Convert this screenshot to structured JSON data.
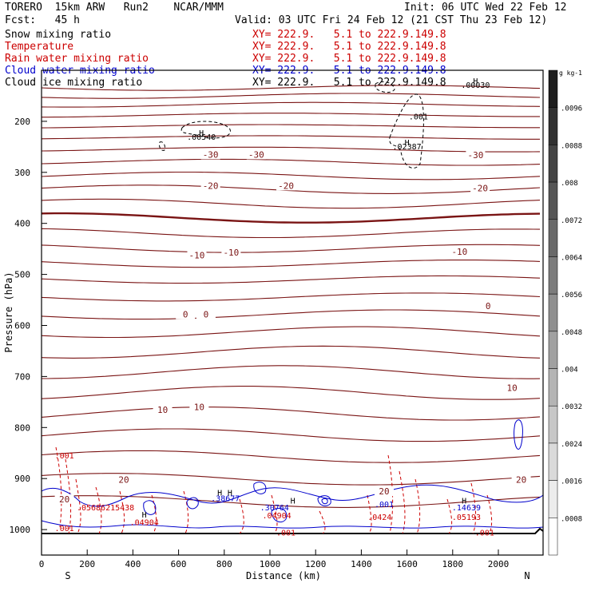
{
  "header": {
    "model": "TORERO  15km ARW   Run2    NCAR/MMM",
    "init": "Init: 06 UTC Wed 22 Feb 12",
    "fcst": "Fcst:   45 h",
    "valid": "Valid: 03 UTC Fri 24 Feb 12 (21 CST Thu 23 Feb 12)"
  },
  "legend": [
    {
      "label": "Snow mixing ratio",
      "xy": "XY= 222.9.   5.1 to 222.9.149.8",
      "color": "#000000"
    },
    {
      "label": "Temperature",
      "xy": "XY= 222.9.   5.1 to 222.9.149.8",
      "color": "#cc0000"
    },
    {
      "label": "Rain water mixing ratio",
      "xy": "XY= 222.9.   5.1 to 222.9.149.8",
      "color": "#cc0000"
    },
    {
      "label": "Cloud water mixing ratio",
      "xy": "XY= 222.9.   5.1 to 222.9.149.8",
      "color": "#0000cc"
    },
    {
      "label": "Cloud ice mixing ratio",
      "xy": "XY= 222.9.   5.1 to 222.9.149.8",
      "color": "#000000"
    }
  ],
  "chart_data": {
    "type": "cross-section",
    "xlabel": "Distance (km)",
    "ylabel": "Pressure (hPa)",
    "xlim": [
      0,
      2180
    ],
    "ylim": [
      1050,
      100
    ],
    "x_ticks": [
      0,
      200,
      400,
      600,
      800,
      1000,
      1200,
      1400,
      1600,
      1800,
      2000
    ],
    "y_ticks": [
      200,
      300,
      400,
      500,
      600,
      700,
      800,
      900,
      1000
    ],
    "endpoints": {
      "left": "S",
      "right": "N"
    },
    "temperature_labels": [
      {
        "text": "-30",
        "x": 740,
        "p": 265
      },
      {
        "text": "-30",
        "x": 940,
        "p": 265
      },
      {
        "text": "-30",
        "x": 1900,
        "p": 266
      },
      {
        "text": "-20",
        "x": 740,
        "p": 326
      },
      {
        "text": "-20",
        "x": 1070,
        "p": 326
      },
      {
        "text": "-20",
        "x": 1920,
        "p": 331
      },
      {
        "text": "-10",
        "x": 680,
        "p": 462
      },
      {
        "text": "-10",
        "x": 830,
        "p": 457
      },
      {
        "text": "-10",
        "x": 1830,
        "p": 455
      },
      {
        "text": "0",
        "x": 630,
        "p": 578
      },
      {
        "text": "0",
        "x": 720,
        "p": 578
      },
      {
        "text": "0",
        "x": 1955,
        "p": 562
      },
      {
        "text": "10",
        "x": 530,
        "p": 765
      },
      {
        "text": "10",
        "x": 690,
        "p": 760
      },
      {
        "text": "10",
        "x": 2060,
        "p": 722
      },
      {
        "text": "20",
        "x": 360,
        "p": 902
      },
      {
        "text": "20",
        "x": 2100,
        "p": 902
      },
      {
        "text": "20",
        "x": 1500,
        "p": 925
      },
      {
        "text": "20",
        "x": 100,
        "p": 940
      }
    ],
    "maxima_labels": [
      {
        "text": ".00540",
        "x": 700,
        "p": 230,
        "color": "#000000"
      },
      {
        "text": ".02387",
        "x": 1600,
        "p": 249,
        "color": "#000000"
      },
      {
        "text": ".00030",
        "x": 1900,
        "p": 128,
        "color": "#000000"
      },
      {
        "text": ".001",
        "x": 1650,
        "p": 190,
        "color": "#000000"
      },
      {
        "text": ".001",
        "x": 100,
        "p": 854,
        "color": "#cc0000"
      },
      {
        "text": ".001",
        "x": 100,
        "p": 997,
        "color": "#cc0000"
      },
      {
        "text": ".05686215438",
        "x": 280,
        "p": 956,
        "color": "#cc0000"
      },
      {
        "text": ".04904",
        "x": 450,
        "p": 985,
        "color": "#cc0000"
      },
      {
        "text": ".38677",
        "x": 805,
        "p": 938,
        "color": "#0000cc"
      },
      {
        "text": ".30764",
        "x": 1020,
        "p": 956,
        "color": "#0000cc"
      },
      {
        "text": ".04904",
        "x": 1030,
        "p": 972,
        "color": "#cc0000"
      },
      {
        "text": ".001",
        "x": 1070,
        "p": 1005,
        "color": "#cc0000"
      },
      {
        "text": ".001",
        "x": 1500,
        "p": 950,
        "color": "#0000cc"
      },
      {
        "text": ".0424",
        "x": 1480,
        "p": 975,
        "color": "#cc0000"
      },
      {
        "text": ".14639",
        "x": 1860,
        "p": 956,
        "color": "#0000cc"
      },
      {
        "text": ".05193",
        "x": 1860,
        "p": 975,
        "color": "#cc0000"
      },
      {
        "text": ".001",
        "x": 1940,
        "p": 1005,
        "color": "#cc0000"
      }
    ],
    "high_markers": [
      {
        "text": "H",
        "x": 700,
        "p": 222
      },
      {
        "text": "H",
        "x": 1600,
        "p": 241
      },
      {
        "text": "H",
        "x": 1900,
        "p": 120
      },
      {
        "text": "H",
        "x": 780,
        "p": 927
      },
      {
        "text": "H",
        "x": 825,
        "p": 927
      },
      {
        "text": "H",
        "x": 1100,
        "p": 943
      },
      {
        "text": "H",
        "x": 1850,
        "p": 943
      },
      {
        "text": "H",
        "x": 450,
        "p": 970
      }
    ],
    "colorbar": {
      "unit": "g kg-1",
      "ticks": [
        ".0096",
        ".0088",
        ".008",
        ".0072",
        ".0064",
        ".0056",
        ".0048",
        ".004",
        ".0032",
        ".0024",
        ".0016",
        ".0008"
      ]
    }
  }
}
